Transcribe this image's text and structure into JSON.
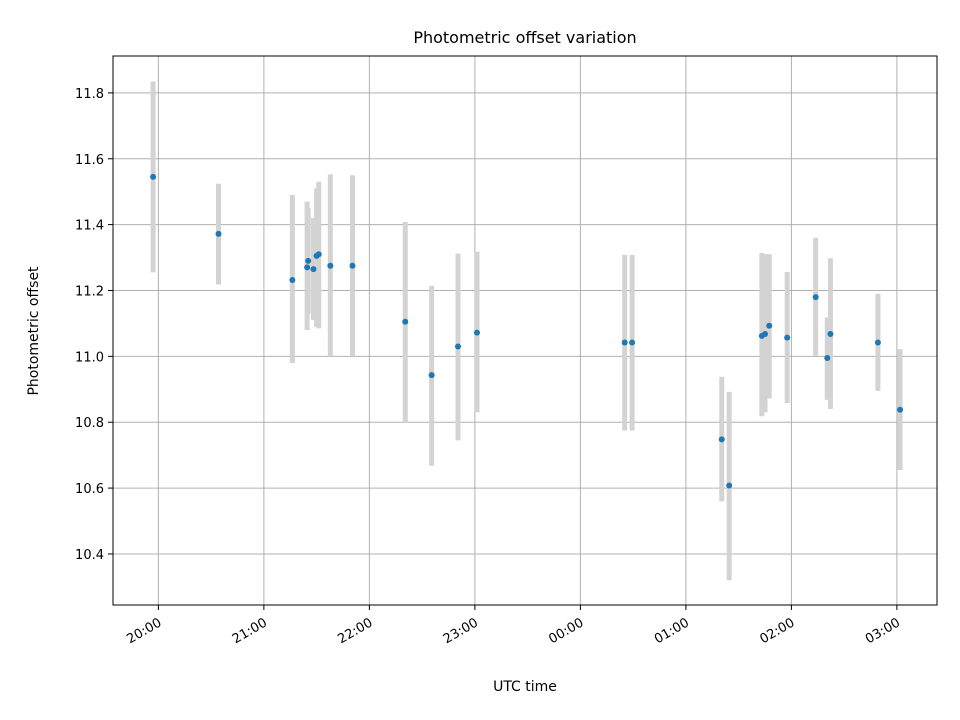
{
  "chart_data": {
    "type": "scatter",
    "title": "Photometric offset variation",
    "xlabel": "UTC time",
    "ylabel": "Photometric offset",
    "grid": true,
    "x_unit": "hours since 00:00 UTC of first day",
    "xlim": [
      19.57,
      27.38
    ],
    "ylim": [
      10.245,
      11.912
    ],
    "x_ticks": [
      {
        "x": 20,
        "label": "20:00"
      },
      {
        "x": 21,
        "label": "21:00"
      },
      {
        "x": 22,
        "label": "22:00"
      },
      {
        "x": 23,
        "label": "23:00"
      },
      {
        "x": 24,
        "label": "00:00"
      },
      {
        "x": 25,
        "label": "01:00"
      },
      {
        "x": 26,
        "label": "02:00"
      },
      {
        "x": 27,
        "label": "03:00"
      }
    ],
    "y_ticks": [
      {
        "y": 10.4,
        "label": "10.4"
      },
      {
        "y": 10.6,
        "label": "10.6"
      },
      {
        "y": 10.8,
        "label": "10.8"
      },
      {
        "y": 11.0,
        "label": "11.0"
      },
      {
        "y": 11.2,
        "label": "11.2"
      },
      {
        "y": 11.4,
        "label": "11.4"
      },
      {
        "y": 11.6,
        "label": "11.6"
      },
      {
        "y": 11.8,
        "label": "11.8"
      }
    ],
    "point_color": "#1f77b4",
    "errorbar_color": "#d3d3d3",
    "points": [
      {
        "x": 19.95,
        "y": 11.545,
        "lo": 11.255,
        "hi": 11.835
      },
      {
        "x": 20.57,
        "y": 11.372,
        "lo": 11.218,
        "hi": 11.524
      },
      {
        "x": 21.27,
        "y": 11.232,
        "lo": 10.98,
        "hi": 11.49
      },
      {
        "x": 21.41,
        "y": 11.27,
        "lo": 11.08,
        "hi": 11.47
      },
      {
        "x": 21.42,
        "y": 11.29,
        "lo": 11.13,
        "hi": 11.45
      },
      {
        "x": 21.47,
        "y": 11.265,
        "lo": 11.11,
        "hi": 11.42
      },
      {
        "x": 21.5,
        "y": 11.305,
        "lo": 11.09,
        "hi": 11.51
      },
      {
        "x": 21.52,
        "y": 11.31,
        "lo": 11.085,
        "hi": 11.53
      },
      {
        "x": 21.63,
        "y": 11.275,
        "lo": 11.0,
        "hi": 11.553
      },
      {
        "x": 21.84,
        "y": 11.275,
        "lo": 11.0,
        "hi": 11.55
      },
      {
        "x": 22.34,
        "y": 11.105,
        "lo": 10.8,
        "hi": 11.408
      },
      {
        "x": 22.59,
        "y": 10.943,
        "lo": 10.668,
        "hi": 11.214
      },
      {
        "x": 22.84,
        "y": 11.03,
        "lo": 10.745,
        "hi": 11.312
      },
      {
        "x": 23.02,
        "y": 11.072,
        "lo": 10.83,
        "hi": 11.318
      },
      {
        "x": 24.42,
        "y": 11.042,
        "lo": 10.775,
        "hi": 11.308
      },
      {
        "x": 24.49,
        "y": 11.042,
        "lo": 10.775,
        "hi": 11.308
      },
      {
        "x": 25.34,
        "y": 10.748,
        "lo": 10.56,
        "hi": 10.938
      },
      {
        "x": 25.41,
        "y": 10.608,
        "lo": 10.32,
        "hi": 10.892
      },
      {
        "x": 25.72,
        "y": 11.062,
        "lo": 10.818,
        "hi": 11.314
      },
      {
        "x": 25.75,
        "y": 11.068,
        "lo": 10.83,
        "hi": 11.31
      },
      {
        "x": 25.79,
        "y": 11.093,
        "lo": 10.872,
        "hi": 11.31
      },
      {
        "x": 25.96,
        "y": 11.057,
        "lo": 10.858,
        "hi": 11.256
      },
      {
        "x": 26.23,
        "y": 11.18,
        "lo": 11.002,
        "hi": 11.36
      },
      {
        "x": 26.34,
        "y": 10.995,
        "lo": 10.868,
        "hi": 11.118
      },
      {
        "x": 26.37,
        "y": 11.068,
        "lo": 10.84,
        "hi": 11.298
      },
      {
        "x": 26.82,
        "y": 11.042,
        "lo": 10.895,
        "hi": 11.19
      },
      {
        "x": 27.03,
        "y": 10.838,
        "lo": 10.655,
        "hi": 11.022
      }
    ]
  }
}
